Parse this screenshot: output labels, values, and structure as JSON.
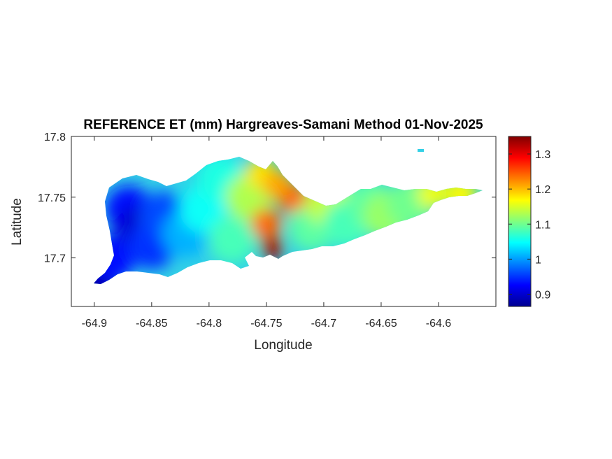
{
  "chart_data": {
    "type": "heatmap",
    "title": "REFERENCE ET (mm) Hargreaves-Samani Method  01-Nov-2025",
    "xlabel": "Longitude",
    "ylabel": "Latitude",
    "xlim": [
      -64.92,
      -64.55
    ],
    "ylim": [
      17.66,
      17.8
    ],
    "xticks": [
      -64.9,
      -64.85,
      -64.8,
      -64.75,
      -64.7,
      -64.65,
      -64.6
    ],
    "xtick_labels": [
      "-64.9",
      "-64.85",
      "-64.8",
      "-64.75",
      "-64.7",
      "-64.65",
      "-64.6"
    ],
    "yticks": [
      17.7,
      17.75,
      17.8
    ],
    "ytick_labels": [
      "17.7",
      "17.75",
      "17.8"
    ],
    "colorbar": {
      "colormap": "jet",
      "range": [
        0.865,
        1.35
      ],
      "ticks": [
        0.9,
        1.0,
        1.1,
        1.2,
        1.3
      ],
      "tick_labels": [
        "0.9",
        "1",
        "1.1",
        "1.2",
        "1.3"
      ]
    },
    "grid": false,
    "values": [
      {
        "lon": -64.9,
        "lat": 17.68,
        "et": 0.87
      },
      {
        "lon": -64.885,
        "lat": 17.7,
        "et": 0.93
      },
      {
        "lon": -64.87,
        "lat": 17.74,
        "et": 0.93
      },
      {
        "lon": -64.86,
        "lat": 17.725,
        "et": 0.9
      },
      {
        "lon": -64.85,
        "lat": 17.71,
        "et": 0.95
      },
      {
        "lon": -64.84,
        "lat": 17.735,
        "et": 0.96
      },
      {
        "lon": -64.82,
        "lat": 17.72,
        "et": 1.01
      },
      {
        "lon": -64.805,
        "lat": 17.74,
        "et": 1.05
      },
      {
        "lon": -64.79,
        "lat": 17.765,
        "et": 1.06
      },
      {
        "lon": -64.78,
        "lat": 17.715,
        "et": 1.08
      },
      {
        "lon": -64.765,
        "lat": 17.75,
        "et": 1.13
      },
      {
        "lon": -64.755,
        "lat": 17.77,
        "et": 1.18
      },
      {
        "lon": -64.75,
        "lat": 17.728,
        "et": 1.24
      },
      {
        "lon": -64.745,
        "lat": 17.708,
        "et": 1.33
      },
      {
        "lon": -64.74,
        "lat": 17.76,
        "et": 1.21
      },
      {
        "lon": -64.725,
        "lat": 17.747,
        "et": 1.24
      },
      {
        "lon": -64.71,
        "lat": 17.725,
        "et": 1.09
      },
      {
        "lon": -64.695,
        "lat": 17.745,
        "et": 1.14
      },
      {
        "lon": -64.68,
        "lat": 17.728,
        "et": 1.08
      },
      {
        "lon": -64.66,
        "lat": 17.745,
        "et": 1.09
      },
      {
        "lon": -64.645,
        "lat": 17.735,
        "et": 1.12
      },
      {
        "lon": -64.625,
        "lat": 17.745,
        "et": 1.1
      },
      {
        "lon": -64.605,
        "lat": 17.753,
        "et": 1.16
      },
      {
        "lon": -64.58,
        "lat": 17.753,
        "et": 1.17
      }
    ]
  }
}
